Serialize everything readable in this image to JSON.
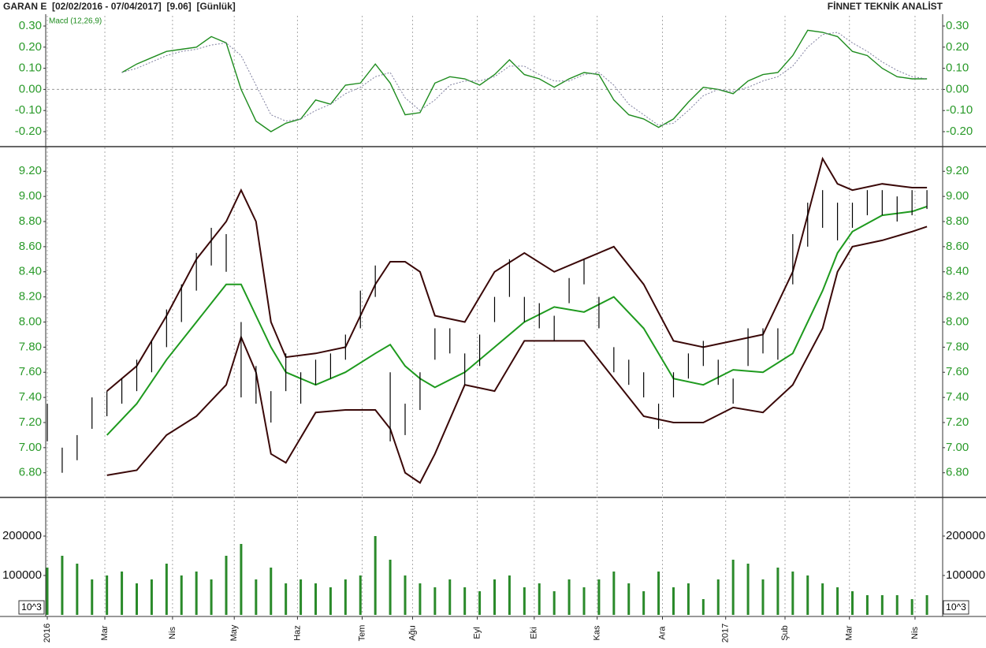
{
  "header": {
    "title": "GARAN E  [02/02/2016 - 07/04/2017]  [9.06]  [Günlük]",
    "brand": "FİNNET TEKNİK ANALİST"
  },
  "chart_data": [
    {
      "type": "line",
      "label": "Macd (12,26,9)",
      "x": [
        25,
        30,
        35,
        40,
        45,
        50,
        55,
        60,
        65,
        70,
        75,
        80,
        85,
        90,
        95,
        100,
        105,
        110,
        115,
        120,
        125,
        130,
        135,
        140,
        145,
        150,
        155,
        160,
        165,
        170,
        175,
        180,
        185,
        190,
        195,
        200,
        205,
        210,
        215,
        220,
        225,
        230,
        235,
        240,
        245,
        250,
        255,
        260,
        265,
        270,
        275,
        280,
        285,
        290,
        295
      ],
      "series": [
        {
          "color": "#1e8c1e",
          "dash": false,
          "values": [
            0.08,
            0.12,
            0.15,
            0.18,
            0.19,
            0.2,
            0.25,
            0.22,
            0.0,
            -0.15,
            -0.2,
            -0.16,
            -0.14,
            -0.05,
            -0.07,
            0.02,
            0.03,
            0.12,
            0.03,
            -0.12,
            -0.11,
            0.03,
            0.06,
            0.05,
            0.02,
            0.07,
            0.14,
            0.07,
            0.05,
            0.01,
            0.05,
            0.08,
            0.07,
            -0.05,
            -0.12,
            -0.14,
            -0.18,
            -0.14,
            -0.06,
            0.01,
            0.0,
            -0.02,
            0.04,
            0.07,
            0.08,
            0.16,
            0.28,
            0.27,
            0.25,
            0.18,
            0.16,
            0.1,
            0.06,
            0.05,
            0.05
          ]
        },
        {
          "color": "#8080a0",
          "dash": true,
          "values": [
            0.08,
            0.1,
            0.13,
            0.16,
            0.18,
            0.19,
            0.21,
            0.22,
            0.16,
            0.02,
            -0.12,
            -0.15,
            -0.14,
            -0.1,
            -0.07,
            -0.02,
            0.01,
            0.06,
            0.08,
            -0.04,
            -0.1,
            -0.05,
            0.02,
            0.04,
            0.04,
            0.06,
            0.11,
            0.11,
            0.07,
            0.04,
            0.04,
            0.07,
            0.08,
            0.02,
            -0.07,
            -0.12,
            -0.17,
            -0.16,
            -0.1,
            -0.03,
            0.0,
            -0.01,
            0.01,
            0.04,
            0.06,
            0.11,
            0.2,
            0.26,
            0.27,
            0.22,
            0.18,
            0.13,
            0.09,
            0.06,
            0.05
          ]
        }
      ],
      "ylim": [
        -0.25,
        0.35
      ],
      "yticks": [
        {
          "value": 0.3,
          "label": "0.30"
        },
        {
          "value": 0.2,
          "label": "0.20"
        },
        {
          "value": 0.1,
          "label": "0.10"
        },
        {
          "value": 0,
          "label": "0.00"
        },
        {
          "value": -0.1,
          "label": "-0.10"
        },
        {
          "value": -0.2,
          "label": "-0.20"
        }
      ],
      "zero_line": true
    },
    {
      "type": "hilo",
      "color": "#000000",
      "x": [
        0,
        5,
        10,
        15,
        20,
        25,
        30,
        35,
        40,
        45,
        50,
        55,
        60,
        65,
        70,
        75,
        80,
        85,
        90,
        95,
        100,
        105,
        110,
        115,
        120,
        125,
        130,
        135,
        140,
        145,
        150,
        155,
        160,
        165,
        170,
        175,
        180,
        185,
        190,
        195,
        200,
        205,
        210,
        215,
        220,
        225,
        230,
        235,
        240,
        245,
        250,
        255,
        260,
        265,
        270,
        275,
        280,
        285,
        290,
        295
      ],
      "high": [
        7.35,
        7.0,
        7.1,
        7.4,
        7.45,
        7.55,
        7.7,
        7.85,
        8.1,
        8.3,
        8.55,
        8.75,
        8.7,
        8.0,
        7.65,
        7.45,
        7.75,
        7.6,
        7.7,
        7.75,
        7.9,
        8.25,
        8.45,
        7.6,
        7.35,
        7.6,
        7.95,
        7.95,
        7.75,
        7.9,
        8.2,
        8.5,
        8.2,
        8.15,
        8.05,
        8.35,
        8.5,
        8.2,
        7.8,
        7.7,
        7.6,
        7.35,
        7.6,
        7.75,
        7.85,
        7.7,
        7.55,
        7.95,
        7.95,
        7.95,
        8.7,
        8.95,
        9.05,
        8.95,
        8.95,
        9.05,
        9.05,
        9.0,
        9.05,
        9.05
      ],
      "low": [
        7.05,
        6.8,
        6.9,
        7.15,
        7.25,
        7.35,
        7.45,
        7.6,
        7.8,
        8.0,
        8.25,
        8.45,
        8.4,
        7.4,
        7.35,
        7.2,
        7.45,
        7.35,
        7.5,
        7.55,
        7.7,
        7.95,
        8.2,
        7.05,
        7.1,
        7.3,
        7.7,
        7.75,
        7.5,
        7.65,
        8.0,
        8.2,
        8.0,
        7.95,
        7.85,
        8.15,
        8.3,
        7.95,
        7.6,
        7.5,
        7.4,
        7.15,
        7.4,
        7.55,
        7.65,
        7.5,
        7.35,
        7.65,
        7.75,
        7.7,
        8.3,
        8.6,
        8.75,
        8.65,
        8.75,
        8.85,
        8.85,
        8.8,
        8.85,
        8.9
      ],
      "bands": {
        "x": [
          20,
          30,
          40,
          50,
          60,
          65,
          70,
          75,
          80,
          90,
          100,
          110,
          115,
          120,
          125,
          130,
          140,
          150,
          160,
          170,
          180,
          190,
          200,
          210,
          220,
          230,
          240,
          250,
          260,
          265,
          270,
          280,
          290,
          295
        ],
        "series": [
          {
            "color": "#3a0808",
            "values": [
              7.45,
              7.65,
              8.05,
              8.5,
              8.8,
              9.05,
              8.8,
              8.0,
              7.72,
              7.75,
              7.8,
              8.3,
              8.48,
              8.48,
              8.4,
              8.05,
              8.0,
              8.4,
              8.55,
              8.4,
              8.5,
              8.6,
              8.3,
              7.85,
              7.8,
              7.85,
              7.9,
              8.4,
              9.3,
              9.1,
              9.05,
              9.1,
              9.07,
              9.07
            ]
          },
          {
            "color": "#1e9a1e",
            "values": [
              7.1,
              7.35,
              7.7,
              8.0,
              8.3,
              8.3,
              8.05,
              7.8,
              7.6,
              7.5,
              7.6,
              7.75,
              7.82,
              7.65,
              7.55,
              7.48,
              7.6,
              7.8,
              8.0,
              8.12,
              8.08,
              8.2,
              7.95,
              7.55,
              7.5,
              7.62,
              7.6,
              7.75,
              8.25,
              8.55,
              8.72,
              8.85,
              8.88,
              8.92
            ]
          },
          {
            "color": "#3a0808",
            "values": [
              6.78,
              6.82,
              7.1,
              7.25,
              7.5,
              7.88,
              7.6,
              6.95,
              6.88,
              7.28,
              7.3,
              7.3,
              7.15,
              6.8,
              6.72,
              6.95,
              7.5,
              7.45,
              7.85,
              7.85,
              7.85,
              7.55,
              7.25,
              7.2,
              7.2,
              7.32,
              7.28,
              7.5,
              7.95,
              8.4,
              8.6,
              8.65,
              8.72,
              8.76
            ]
          }
        ]
      },
      "ylim": [
        6.61,
        9.39
      ],
      "yticks": [
        {
          "value": 9.2,
          "label": "9.20"
        },
        {
          "value": 9.0,
          "label": "9.00"
        },
        {
          "value": 8.8,
          "label": "8.80"
        },
        {
          "value": 8.6,
          "label": "8.60"
        },
        {
          "value": 8.4,
          "label": "8.40"
        },
        {
          "value": 8.2,
          "label": "8.20"
        },
        {
          "value": 8.0,
          "label": "8.00"
        },
        {
          "value": 7.8,
          "label": "7.80"
        },
        {
          "value": 7.6,
          "label": "7.60"
        },
        {
          "value": 7.4,
          "label": "7.40"
        },
        {
          "value": 7.2,
          "label": "7.20"
        },
        {
          "value": 7.0,
          "label": "7.00"
        },
        {
          "value": 6.8,
          "label": "6.80"
        }
      ]
    },
    {
      "type": "bar",
      "color": "#2a8a2a",
      "unit_label": "10^3",
      "x": [
        0,
        5,
        10,
        15,
        20,
        25,
        30,
        35,
        40,
        45,
        50,
        55,
        60,
        65,
        70,
        75,
        80,
        85,
        90,
        95,
        100,
        105,
        110,
        115,
        120,
        125,
        130,
        135,
        140,
        145,
        150,
        155,
        160,
        165,
        170,
        175,
        180,
        185,
        190,
        195,
        200,
        205,
        210,
        215,
        220,
        225,
        230,
        235,
        240,
        245,
        250,
        255,
        260,
        265,
        270,
        275,
        280,
        285,
        290,
        295
      ],
      "values": [
        120000,
        150000,
        130000,
        90000,
        100000,
        110000,
        80000,
        90000,
        130000,
        100000,
        110000,
        90000,
        150000,
        180000,
        90000,
        120000,
        80000,
        90000,
        80000,
        70000,
        90000,
        100000,
        200000,
        140000,
        100000,
        80000,
        70000,
        90000,
        70000,
        60000,
        90000,
        100000,
        70000,
        80000,
        60000,
        90000,
        70000,
        90000,
        110000,
        80000,
        60000,
        110000,
        70000,
        80000,
        40000,
        90000,
        140000,
        130000,
        90000,
        120000,
        110000,
        100000,
        80000,
        70000,
        60000,
        50000,
        50000,
        50000,
        40000,
        50000
      ],
      "ylim": [
        0,
        300000
      ],
      "yticks": [
        100000,
        200000
      ],
      "xlim": [
        0,
        300
      ],
      "xticks": [
        {
          "value": 0,
          "label": "2016"
        },
        {
          "value": 19.3,
          "label": "Mar"
        },
        {
          "value": 42,
          "label": "Nis"
        },
        {
          "value": 62.7,
          "label": "May"
        },
        {
          "value": 83.9,
          "label": "Haz"
        },
        {
          "value": 105.6,
          "label": "Tem"
        },
        {
          "value": 122.5,
          "label": "Ağu"
        },
        {
          "value": 144.2,
          "label": "Eyl"
        },
        {
          "value": 163.3,
          "label": "Eki"
        },
        {
          "value": 184.4,
          "label": "Kas"
        },
        {
          "value": 206.3,
          "label": "Ara"
        },
        {
          "value": 227.5,
          "label": "2017"
        },
        {
          "value": 247.4,
          "label": "Şub"
        },
        {
          "value": 269,
          "label": "Mar"
        },
        {
          "value": 291,
          "label": "Nis"
        }
      ]
    }
  ]
}
